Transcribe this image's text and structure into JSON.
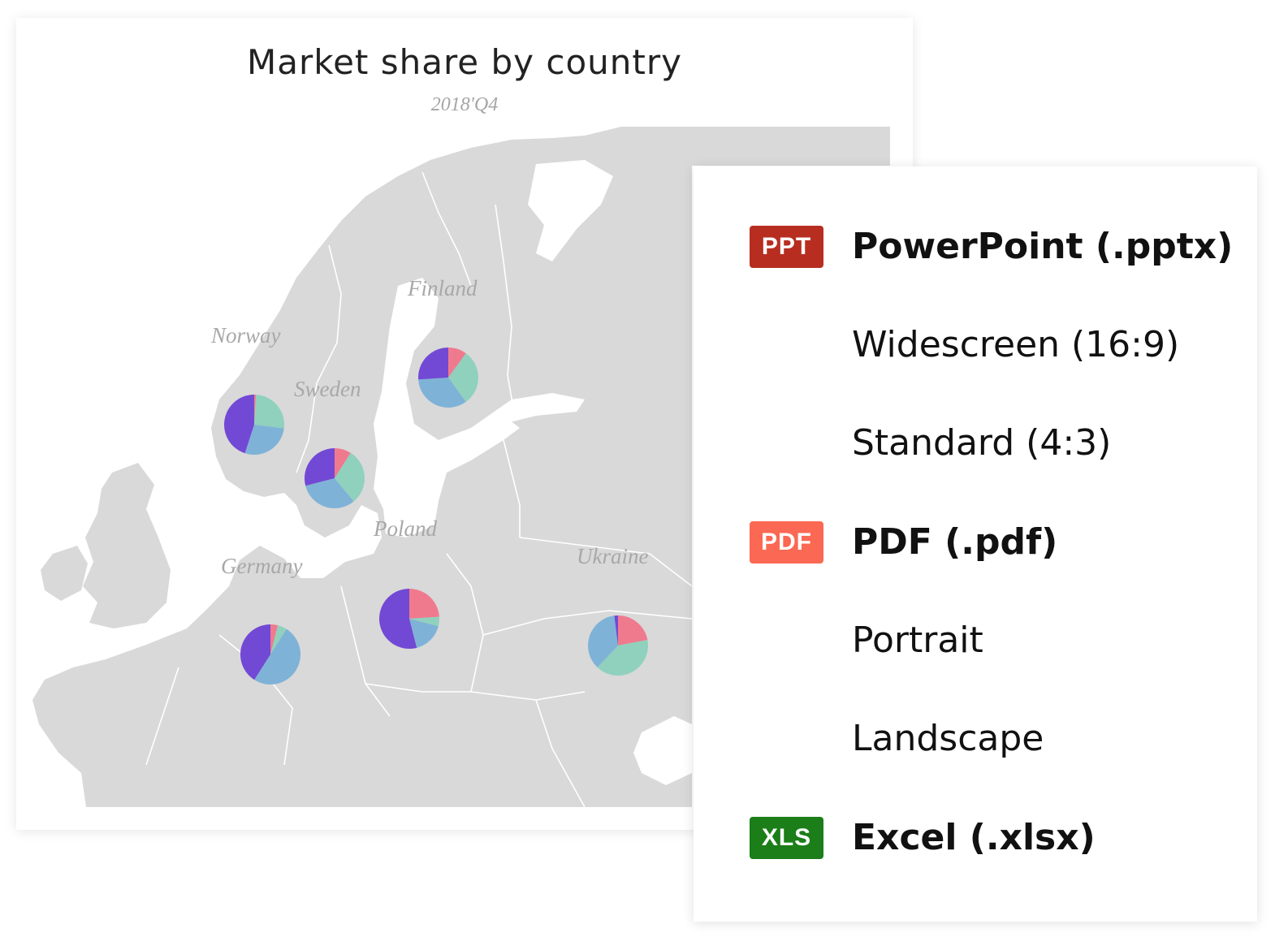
{
  "chart": {
    "title": "Market share by country",
    "subtitle": "2018'Q4"
  },
  "colors": {
    "purple": "#7249d4",
    "pink": "#ef7a8e",
    "green": "#8fd1bd",
    "blue": "#7fb2d7",
    "land": "#d9d9d9",
    "ppt_badge": "#b72e21",
    "pdf_badge": "#fb6853",
    "xls_badge": "#1b7e18"
  },
  "chart_data": {
    "type": "map-pie",
    "countries": [
      {
        "name": "Norway",
        "shares": [
          {
            "color": "pink",
            "value": 1
          },
          {
            "color": "green",
            "value": 26
          },
          {
            "color": "blue",
            "value": 28
          },
          {
            "color": "purple",
            "value": 45
          }
        ]
      },
      {
        "name": "Sweden",
        "shares": [
          {
            "color": "pink",
            "value": 9
          },
          {
            "color": "green",
            "value": 30
          },
          {
            "color": "blue",
            "value": 32
          },
          {
            "color": "purple",
            "value": 29
          }
        ]
      },
      {
        "name": "Finland",
        "shares": [
          {
            "color": "pink",
            "value": 10
          },
          {
            "color": "green",
            "value": 30
          },
          {
            "color": "blue",
            "value": 34
          },
          {
            "color": "purple",
            "value": 26
          }
        ]
      },
      {
        "name": "Germany",
        "shares": [
          {
            "color": "pink",
            "value": 4
          },
          {
            "color": "green",
            "value": 5
          },
          {
            "color": "blue",
            "value": 50
          },
          {
            "color": "purple",
            "value": 41
          }
        ]
      },
      {
        "name": "Poland",
        "shares": [
          {
            "color": "pink",
            "value": 24
          },
          {
            "color": "green",
            "value": 5
          },
          {
            "color": "blue",
            "value": 17
          },
          {
            "color": "purple",
            "value": 54
          }
        ]
      },
      {
        "name": "Ukraine",
        "shares": [
          {
            "color": "pink",
            "value": 22
          },
          {
            "color": "green",
            "value": 40
          },
          {
            "color": "blue",
            "value": 36
          },
          {
            "color": "purple",
            "value": 2
          }
        ]
      }
    ]
  },
  "menu": {
    "items": [
      {
        "badge": "PPT",
        "badge_color": "ppt_badge",
        "label": "PowerPoint (.pptx)",
        "primary": true
      },
      {
        "badge": "",
        "label": "Widescreen (16:9)",
        "primary": false
      },
      {
        "badge": "",
        "label": "Standard (4:3)",
        "primary": false
      },
      {
        "badge": "PDF",
        "badge_color": "pdf_badge",
        "label": "PDF (.pdf)",
        "primary": true
      },
      {
        "badge": "",
        "label": "Portrait",
        "primary": false
      },
      {
        "badge": "",
        "label": "Landscape",
        "primary": false
      },
      {
        "badge": "XLS",
        "badge_color": "xls_badge",
        "label": "Excel (.xlsx)",
        "primary": true
      }
    ]
  }
}
